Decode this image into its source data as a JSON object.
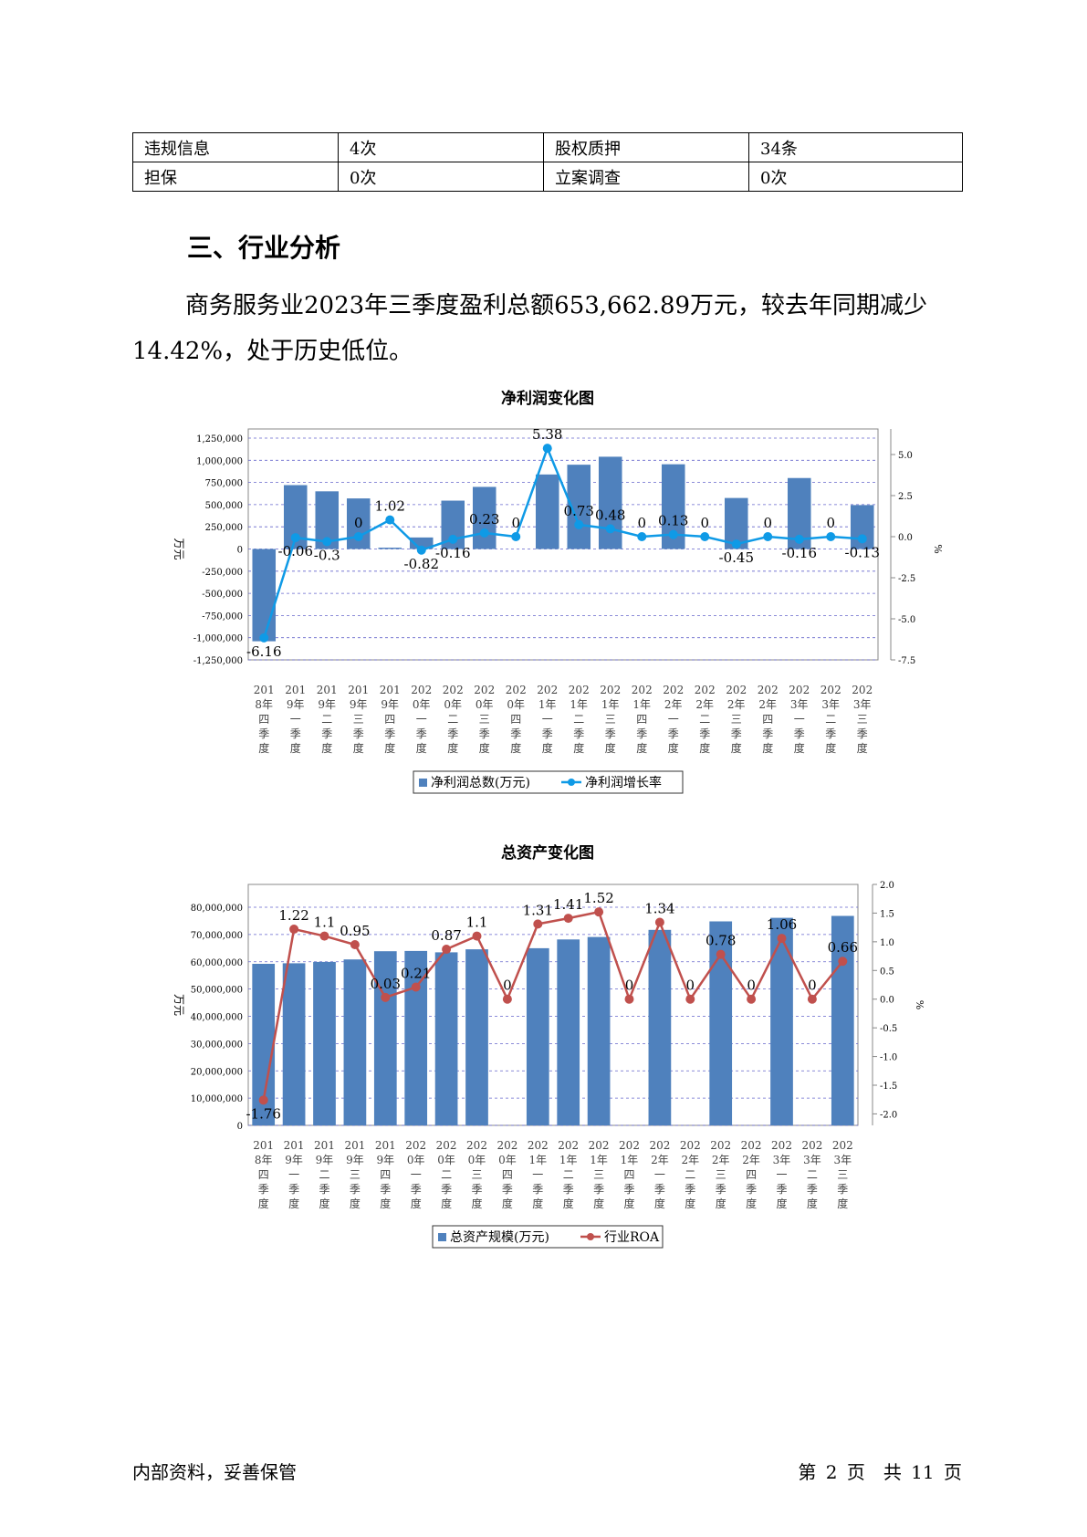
{
  "table": [
    [
      "违规信息",
      "4次",
      "股权质押",
      "34条"
    ],
    [
      "担保",
      "0次",
      "立案调查",
      "0次"
    ]
  ],
  "section_title": "三、行业分析",
  "summary": "商务服务业2023年三季度盈利总额653,662.89万元，较去年同期减少14.42%，处于历史低位。",
  "footer": {
    "left": "内部资料，妥善保管",
    "right": "第 2 页　共 11 页"
  },
  "chart_data": [
    {
      "type": "bar",
      "title": "净利润变化图",
      "categories": [
        "2018年四季度",
        "2019年一季度",
        "2019年二季度",
        "2019年三季度",
        "2019年四季度",
        "2020年一季度",
        "2020年二季度",
        "2020年三季度",
        "2020年四季度",
        "2021年一季度",
        "2021年二季度",
        "2021年三季度",
        "2021年四季度",
        "2022年一季度",
        "2022年二季度",
        "2022年三季度",
        "2022年四季度",
        "2023年一季度",
        "2023年二季度",
        "2023年三季度"
      ],
      "bar_series": {
        "name": "净利润总数(万元)",
        "values": [
          -1040000,
          720000,
          650000,
          570000,
          15000,
          130000,
          545000,
          700000,
          0,
          840000,
          950000,
          1040000,
          0,
          955000,
          0,
          575000,
          0,
          800000,
          0,
          495000
        ]
      },
      "line_series": {
        "name": "净利润增长率",
        "values": [
          -6.16,
          -0.06,
          -0.3,
          0,
          1.02,
          -0.82,
          -0.16,
          0.23,
          0,
          5.38,
          0.73,
          0.48,
          0,
          0.13,
          0,
          -0.45,
          0,
          -0.16,
          0,
          -0.13
        ]
      },
      "line_labels": [
        "-6.16",
        "-0.06",
        "-0.3",
        "0",
        "1.02",
        "-0.82",
        "-0.16",
        "0.23",
        "0",
        "5.38",
        "0.73",
        "0.48",
        "0",
        "0.13",
        "0",
        "-0.45",
        "0",
        "-0.16",
        "0",
        "-0.13"
      ],
      "ylabel": "万元",
      "y2label": "%",
      "ylim": [
        -1250000,
        1250000
      ],
      "y2lim": [
        -7.5,
        6
      ],
      "yticks": [
        "1,250,000",
        "1,000,000",
        "750,000",
        "500,000",
        "250,000",
        "0",
        "-250,000",
        "-500,000",
        "-750,000",
        "-1,000,000",
        "-1,250,000"
      ],
      "y2ticks": [
        "5.0",
        "2.5",
        "0.0",
        "-2.5",
        "-5.0",
        "-7.5"
      ],
      "colors": {
        "bar": "#4f81bd",
        "line": "#0f9ae6"
      }
    },
    {
      "type": "bar",
      "title": "总资产变化图",
      "categories": [
        "2018年四季度",
        "2019年一季度",
        "2019年二季度",
        "2019年三季度",
        "2019年四季度",
        "2020年一季度",
        "2020年二季度",
        "2020年三季度",
        "2020年四季度",
        "2021年一季度",
        "2021年二季度",
        "2021年三季度",
        "2021年四季度",
        "2022年一季度",
        "2022年二季度",
        "2022年三季度",
        "2022年四季度",
        "2023年一季度",
        "2023年二季度",
        "2023年三季度"
      ],
      "bar_series": {
        "name": "总资产规模(万元)",
        "values": [
          59000000,
          59200000,
          59700000,
          60600000,
          63600000,
          63700000,
          63200000,
          64300000,
          0,
          64700000,
          67900000,
          68800000,
          0,
          71400000,
          0,
          74500000,
          0,
          75800000,
          0,
          76500000
        ]
      },
      "line_series": {
        "name": "行业ROA",
        "values": [
          -1.76,
          1.22,
          1.1,
          0.95,
          0.03,
          0.21,
          0.87,
          1.1,
          0,
          1.31,
          1.41,
          1.52,
          0,
          1.34,
          0,
          0.78,
          0,
          1.06,
          0,
          0.66
        ]
      },
      "line_labels": [
        "-1.76",
        "1.22",
        "1.1",
        "0.95",
        "0.03",
        "0.21",
        "0.87",
        "1.1",
        "0",
        "1.31",
        "1.41",
        "1.52",
        "0",
        "1.34",
        "0",
        "0.78",
        "0",
        "1.06",
        "0",
        "0.66"
      ],
      "ylabel": "万元",
      "y2label": "%",
      "ylim": [
        0,
        88000000
      ],
      "y2lim": [
        -2.2,
        2.0
      ],
      "yticks": [
        "80,000,000",
        "70,000,000",
        "60,000,000",
        "50,000,000",
        "40,000,000",
        "30,000,000",
        "20,000,000",
        "10,000,000",
        "0"
      ],
      "y2ticks": [
        "2.0",
        "1.5",
        "1.0",
        "0.5",
        "0.0",
        "-0.5",
        "-1.0",
        "-1.5",
        "-2.0"
      ],
      "colors": {
        "bar": "#4f81bd",
        "line": "#c0504d"
      }
    }
  ]
}
